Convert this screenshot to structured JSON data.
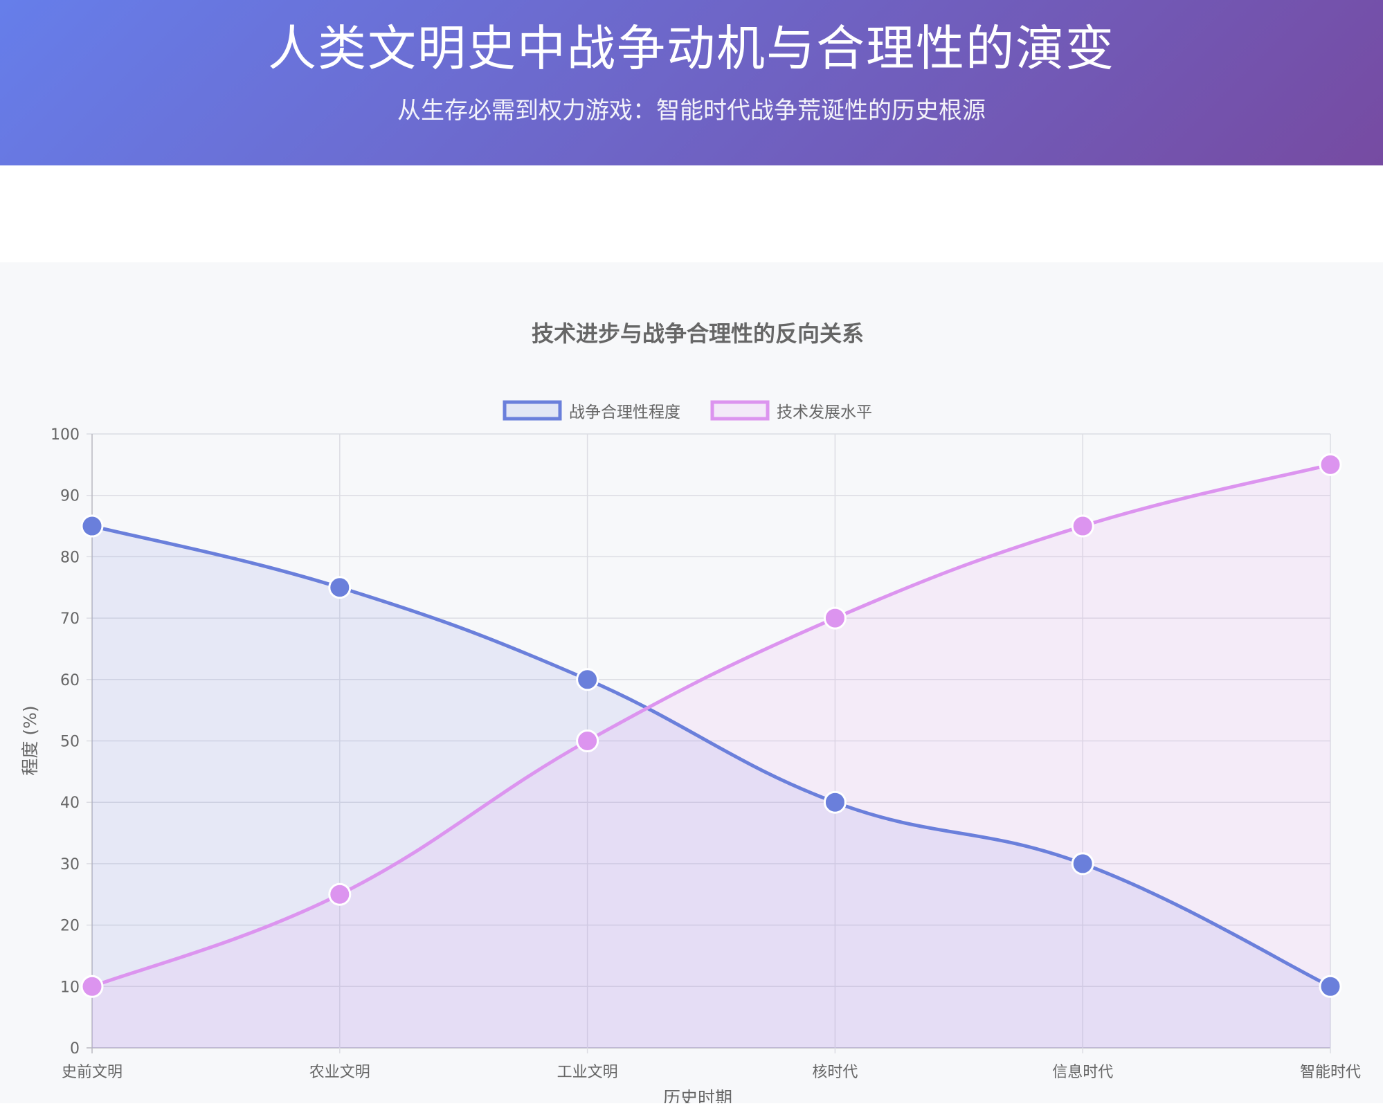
{
  "header": {
    "title": "人类文明史中战争动机与合理性的演变",
    "subtitle": "从生存必需到权力游戏：智能时代战争荒诞性的历史根源"
  },
  "colors": {
    "header_start": "#667eea",
    "header_end": "#764ba2",
    "series_1": "#6a7fdb",
    "series_2": "#dc94ef",
    "text": "#666666"
  },
  "chart_data": {
    "type": "line",
    "title": "技术进步与战争合理性的反向关系",
    "xlabel": "历史时期",
    "ylabel": "程度 (%)",
    "ylim": [
      0,
      100
    ],
    "yticks": [
      0,
      10,
      20,
      30,
      40,
      50,
      60,
      70,
      80,
      90,
      100
    ],
    "categories": [
      "史前文明",
      "农业文明",
      "工业文明",
      "核时代",
      "信息时代",
      "智能时代"
    ],
    "series": [
      {
        "name": "战争合理性程度",
        "values": [
          85,
          75,
          60,
          40,
          30,
          10
        ],
        "color": "#6a7fdb",
        "fill": true
      },
      {
        "name": "技术发展水平",
        "values": [
          10,
          25,
          50,
          70,
          85,
          95
        ],
        "color": "#dc94ef",
        "fill": true
      }
    ],
    "legend_position": "top",
    "grid": true
  }
}
